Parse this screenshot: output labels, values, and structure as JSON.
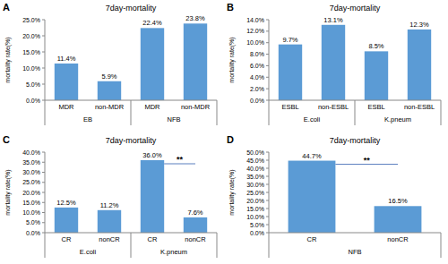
{
  "chart_data": [
    {
      "type": "bar",
      "panel": "A",
      "title": "7day-mortality",
      "y_label": "mortality rate(%)",
      "categories": [
        "MDR",
        "non-MDR",
        "MDR",
        "non-MDR"
      ],
      "groups": [
        "EB",
        "NFB"
      ],
      "values": [
        11.4,
        5.9,
        22.4,
        23.8
      ],
      "value_labels": [
        "11.4%",
        "5.9%",
        "22.4%",
        "23.8%"
      ],
      "data_labels": true,
      "color": "#5b9bd5",
      "grid": false,
      "ylim": [
        0,
        25
      ],
      "yticks": [
        {
          "value": 0,
          "label": "0.0%"
        },
        {
          "value": 5,
          "label": "5.0%"
        },
        {
          "value": 10,
          "label": "10.0%"
        },
        {
          "value": 15,
          "label": "15.0%"
        },
        {
          "value": 20,
          "label": "20.0%"
        },
        {
          "value": 25,
          "label": "25.0%"
        }
      ]
    },
    {
      "type": "bar",
      "panel": "B",
      "title": "7day-mortality",
      "y_label": "mortality rate(%)",
      "categories": [
        "ESBL",
        "non-ESBL",
        "ESBL",
        "non-ESBL"
      ],
      "groups": [
        "E.coli",
        "K.pneum"
      ],
      "values": [
        9.7,
        13.1,
        8.5,
        12.3
      ],
      "value_labels": [
        "9.7%",
        "13.1%",
        "8.5%",
        "12.3%"
      ],
      "data_labels": true,
      "color": "#5b9bd5",
      "grid": false,
      "ylim": [
        0,
        14
      ],
      "yticks": [
        {
          "value": 0,
          "label": "0.0%"
        },
        {
          "value": 2,
          "label": "2.0%"
        },
        {
          "value": 4,
          "label": "4.0%"
        },
        {
          "value": 6,
          "label": "6.0%"
        },
        {
          "value": 8,
          "label": "8.0%"
        },
        {
          "value": 10,
          "label": "10.0%"
        },
        {
          "value": 12,
          "label": "12.0%"
        },
        {
          "value": 14,
          "label": "14.0%"
        }
      ]
    },
    {
      "type": "bar",
      "panel": "C",
      "title": "7day-mortality",
      "y_label": "mortality rate(%)",
      "categories": [
        "CR",
        "nonCR",
        "CR",
        "nonCR"
      ],
      "groups": [
        "E.coli",
        "K.pneum"
      ],
      "values": [
        12.5,
        11.2,
        36.0,
        7.6
      ],
      "value_labels": [
        "12.5%",
        "11.2%",
        "36.0%",
        "7.6%"
      ],
      "data_labels": true,
      "color": "#5b9bd5",
      "grid": false,
      "annotations": [
        {
          "text": "**",
          "between": [
            2,
            3
          ]
        }
      ],
      "ylim": [
        0,
        40
      ],
      "yticks": [
        {
          "value": 0,
          "label": "0.0%"
        },
        {
          "value": 5,
          "label": "5.0%"
        },
        {
          "value": 10,
          "label": "10.0%"
        },
        {
          "value": 15,
          "label": "15.0%"
        },
        {
          "value": 20,
          "label": "20.0%"
        },
        {
          "value": 25,
          "label": "25.0%"
        },
        {
          "value": 30,
          "label": "30.0%"
        },
        {
          "value": 35,
          "label": "35.0%"
        },
        {
          "value": 40,
          "label": "40.0%"
        }
      ]
    },
    {
      "type": "bar",
      "panel": "D",
      "title": "7day-mortality",
      "y_label": "mortality rate(%)",
      "categories": [
        "CR",
        "nonCR"
      ],
      "groups": [
        "NFB"
      ],
      "values": [
        44.7,
        16.5
      ],
      "value_labels": [
        "44.7%",
        "16.5%"
      ],
      "data_labels": true,
      "color": "#5b9bd5",
      "grid": false,
      "annotations": [
        {
          "text": "**",
          "between": [
            0,
            1
          ]
        }
      ],
      "ylim": [
        0,
        50
      ],
      "yticks": [
        {
          "value": 0,
          "label": "0.0%"
        },
        {
          "value": 5,
          "label": "5.0%"
        },
        {
          "value": 10,
          "label": "10.0%"
        },
        {
          "value": 15,
          "label": "15.0%"
        },
        {
          "value": 20,
          "label": "20.0%"
        },
        {
          "value": 25,
          "label": "25.0%"
        },
        {
          "value": 30,
          "label": "30.0%"
        },
        {
          "value": 35,
          "label": "35.0%"
        },
        {
          "value": 40,
          "label": "40.0%"
        },
        {
          "value": 45,
          "label": "45.0%"
        },
        {
          "value": 50,
          "label": "50.0%"
        }
      ]
    }
  ]
}
